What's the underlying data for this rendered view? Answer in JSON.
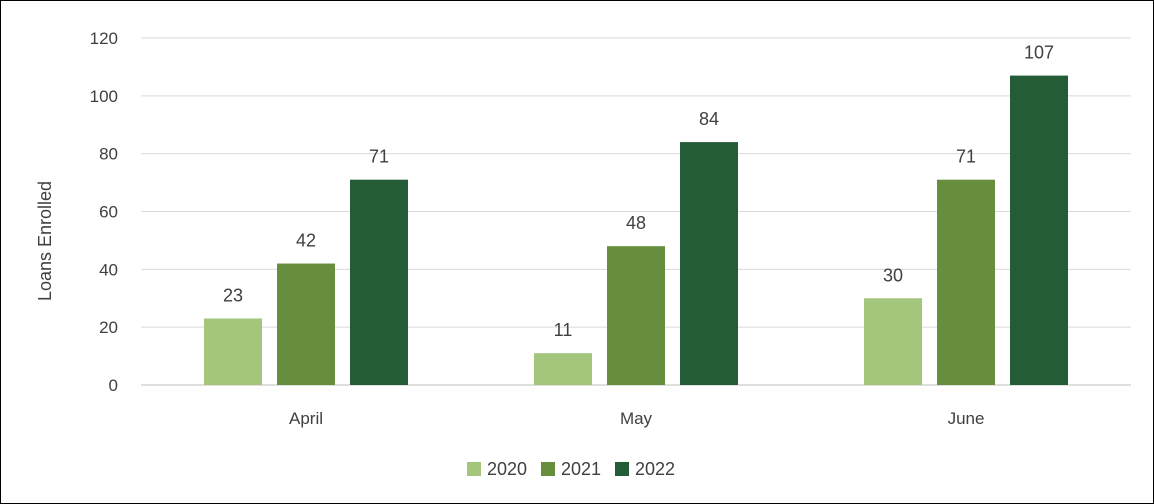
{
  "chart_data": {
    "type": "bar",
    "title": "",
    "xlabel": "",
    "ylabel": "Loans Enrolled",
    "categories": [
      "April",
      "May",
      "June"
    ],
    "series": [
      {
        "name": "2020",
        "values": [
          23,
          11,
          30
        ],
        "color": "#a3c67c"
      },
      {
        "name": "2021",
        "values": [
          42,
          48,
          71
        ],
        "color": "#668e3c"
      },
      {
        "name": "2022",
        "values": [
          71,
          84,
          107
        ],
        "color": "#245c38"
      }
    ],
    "ylim": [
      0,
      120
    ],
    "yticks": [
      0,
      20,
      40,
      60,
      80,
      100,
      120
    ],
    "grid": true,
    "data_labels": true,
    "legend": "bottom"
  }
}
